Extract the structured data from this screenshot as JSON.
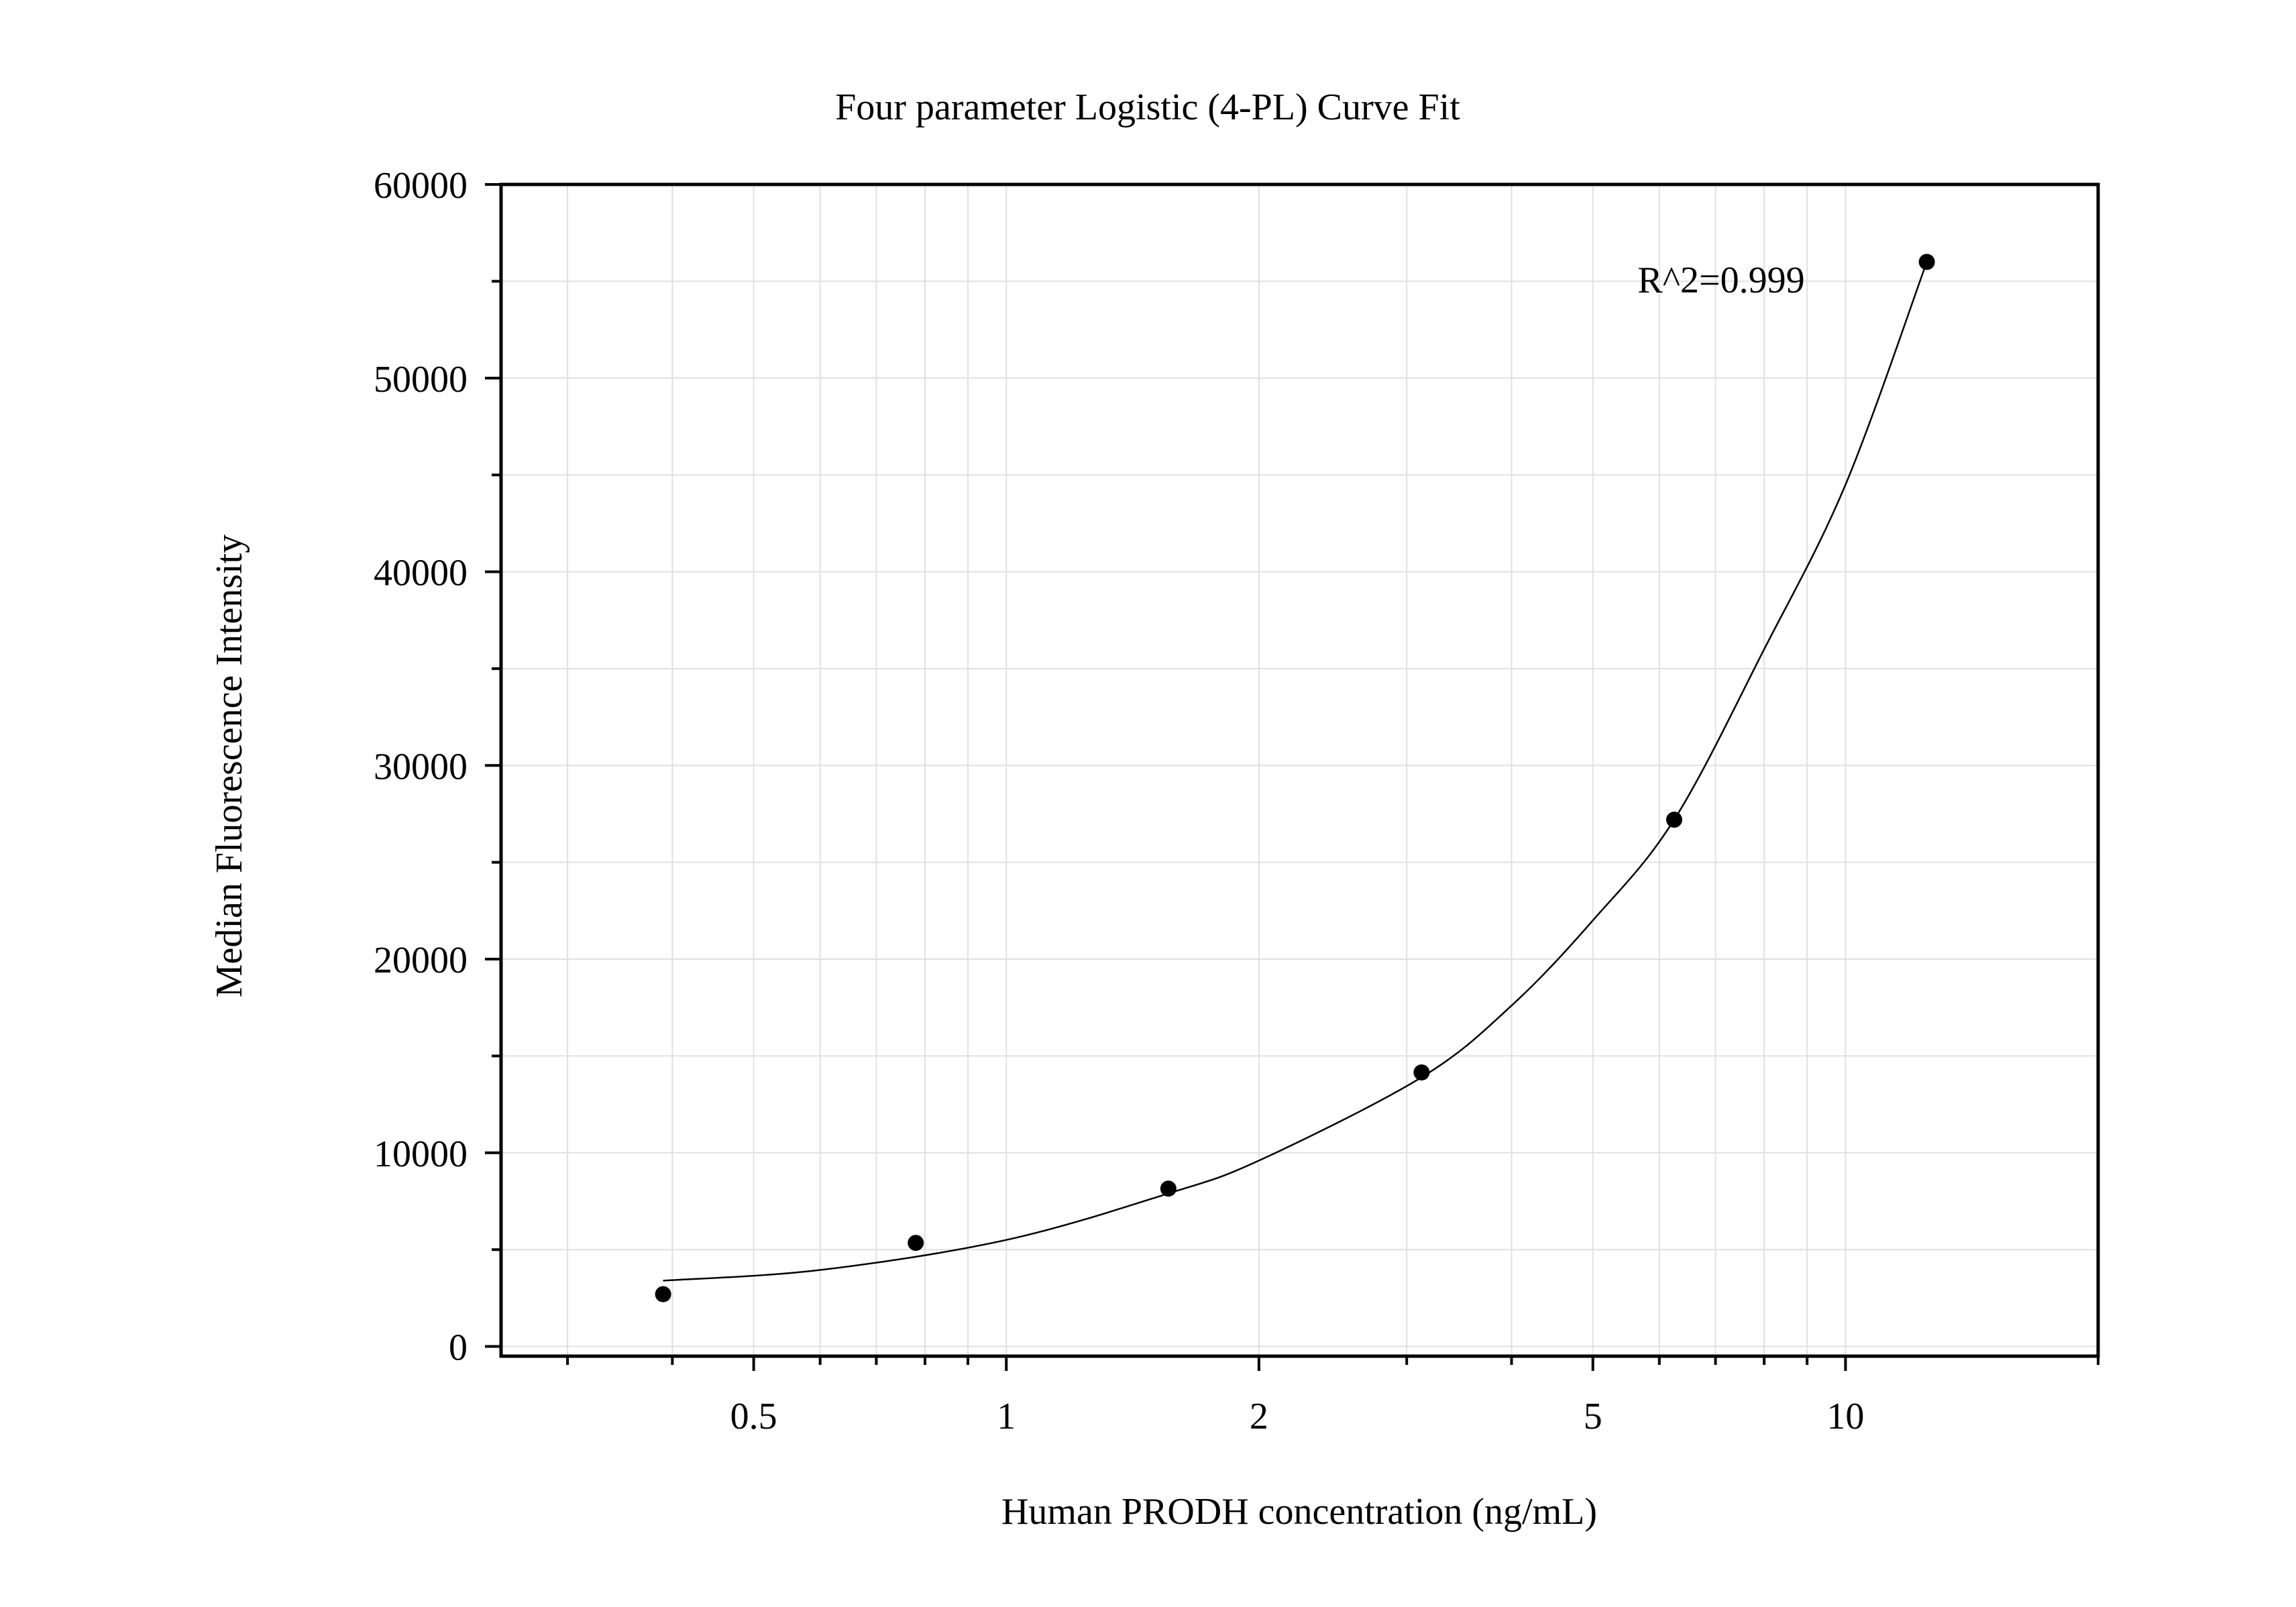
{
  "chart_data": {
    "type": "scatter",
    "title": "Four parameter Logistic (4-PL) Curve Fit",
    "xlabel": "Human PRODH concentration (ng/mL)",
    "ylabel": "Median Fluorescence Intensity",
    "x_scale": "log",
    "xlim": [
      0.25,
      20
    ],
    "ylim": [
      -500,
      60000
    ],
    "x_ticks": [
      {
        "value": 0.5,
        "label": "0.5"
      },
      {
        "value": 1,
        "label": "1"
      },
      {
        "value": 2,
        "label": "2"
      },
      {
        "value": 5,
        "label": "5"
      },
      {
        "value": 10,
        "label": "10"
      }
    ],
    "y_ticks": [
      {
        "value": 0,
        "label": "0"
      },
      {
        "value": 10000,
        "label": "10000"
      },
      {
        "value": 20000,
        "label": "20000"
      },
      {
        "value": 30000,
        "label": "30000"
      },
      {
        "value": 40000,
        "label": "40000"
      },
      {
        "value": 50000,
        "label": "50000"
      },
      {
        "value": 60000,
        "label": "60000"
      }
    ],
    "grid": true,
    "series": [
      {
        "type": "scatter",
        "x": [
          0.39,
          0.78,
          1.56,
          3.125,
          6.25,
          12.5
        ],
        "y": [
          2700,
          5350,
          8150,
          14150,
          27200,
          56000
        ]
      },
      {
        "type": "line",
        "x": [
          0.39,
          0.6,
          1.0,
          1.56,
          2.0,
          3.125,
          4.0,
          5.0,
          6.25,
          8.0,
          10.0,
          12.5
        ],
        "y": [
          3400,
          3950,
          5500,
          7900,
          9600,
          13900,
          17600,
          22000,
          27200,
          36000,
          44500,
          56000
        ]
      }
    ],
    "annotations": [
      {
        "text": "R^2=0.999",
        "position": "top-right"
      }
    ],
    "colors": {
      "points": "#000000",
      "curve": "#000000",
      "grid": "#e0e0e0",
      "axes": "#000000"
    }
  }
}
